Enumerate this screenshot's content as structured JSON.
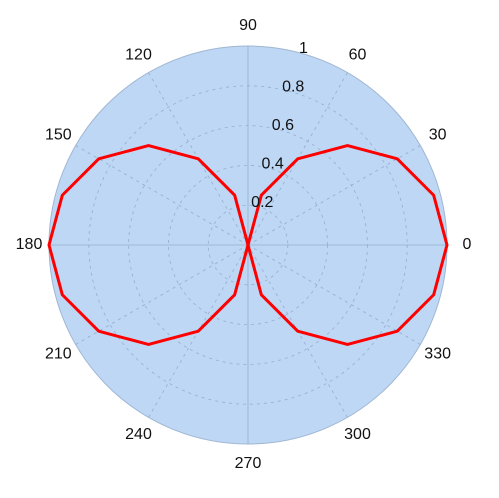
{
  "chart_data": {
    "type": "line",
    "coordinate_system": "polar",
    "theta_unit": "degrees",
    "angle_ticks": [
      "0",
      "30",
      "60",
      "90",
      "120",
      "150",
      "180",
      "210",
      "240",
      "270",
      "300",
      "330"
    ],
    "radial_ticks": [
      "0.2",
      "0.4",
      "0.6",
      "0.8",
      "1"
    ],
    "rlim": [
      0,
      1
    ],
    "grid": true,
    "series": [
      {
        "function": "r = |cos(theta)|",
        "theta": [
          0,
          15,
          30,
          45,
          60,
          75,
          90,
          105,
          120,
          135,
          150,
          165,
          180,
          195,
          210,
          225,
          240,
          255,
          270,
          285,
          300,
          315,
          330,
          345,
          360
        ],
        "r": [
          1,
          0.966,
          0.866,
          0.707,
          0.5,
          0.259,
          0,
          0.259,
          0.5,
          0.707,
          0.866,
          0.966,
          1,
          0.966,
          0.866,
          0.707,
          0.5,
          0.259,
          0,
          0.259,
          0.5,
          0.707,
          0.866,
          0.966,
          1
        ],
        "color": "#ff0000"
      }
    ],
    "colors": {
      "plot_background": "#bdd7f5",
      "plot_border": "#9fb6d2",
      "grid": "#8da7c5",
      "text": "#111111"
    }
  }
}
